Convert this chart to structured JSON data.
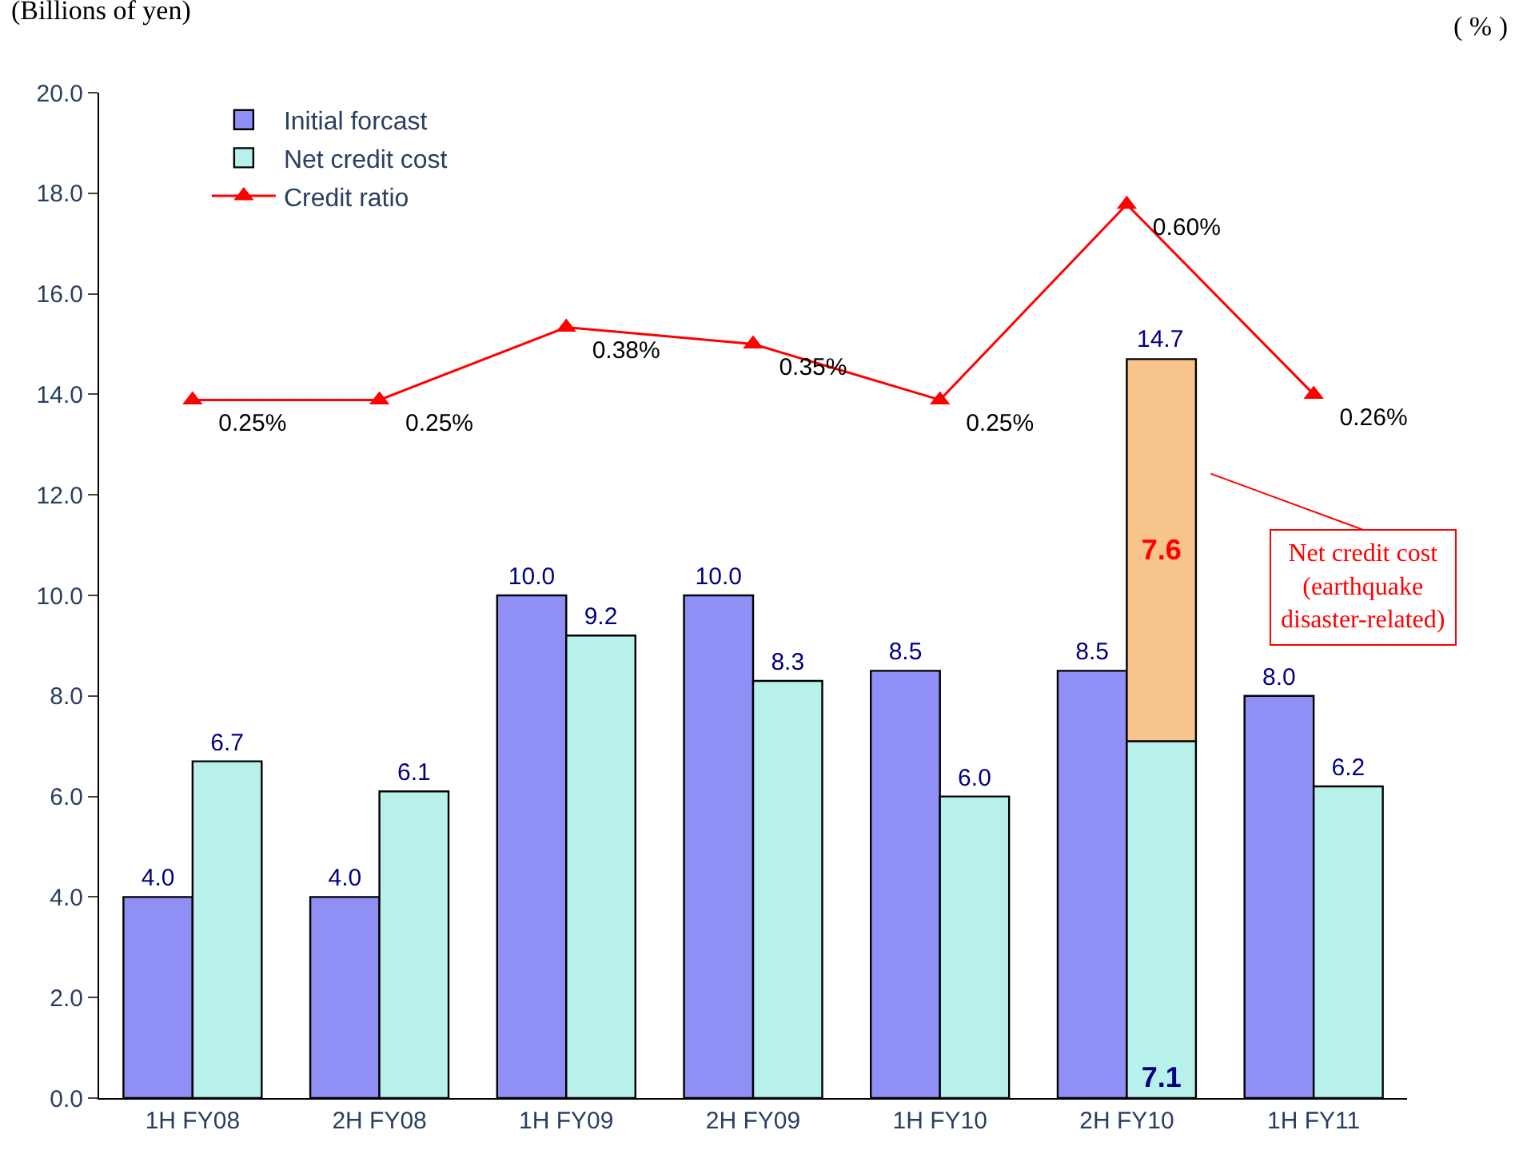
{
  "chart_data": {
    "type": "bar",
    "categories": [
      "1H FY08",
      "2H FY08",
      "1H FY09",
      "2H FY09",
      "1H FY10",
      "2H FY10",
      "1H FY11"
    ],
    "ylabel": "(Billions of yen)",
    "y2label": "( % )",
    "ylim": [
      0,
      20
    ],
    "yticks": [
      {
        "value": 0,
        "label": "0.0"
      },
      {
        "value": 2,
        "label": "2.0"
      },
      {
        "value": 4,
        "label": "4.0"
      },
      {
        "value": 6,
        "label": "6.0"
      },
      {
        "value": 8,
        "label": "8.0"
      },
      {
        "value": 10,
        "label": "10.0"
      },
      {
        "value": 12,
        "label": "12.0"
      },
      {
        "value": 14,
        "label": "14.0"
      },
      {
        "value": 16,
        "label": "16.0"
      },
      {
        "value": 18,
        "label": "18.0"
      },
      {
        "value": 20,
        "label": "20.0"
      }
    ],
    "y2lim": [
      -1.0,
      0.8
    ],
    "series": [
      {
        "name": "Initial forcast",
        "color": "#8f8ff5",
        "values": [
          4.0,
          4.0,
          10.0,
          10.0,
          8.5,
          8.5,
          8.0
        ],
        "value_labels": [
          "4.0",
          "4.0",
          "10.0",
          "10.0",
          "8.5",
          "8.5",
          "8.0"
        ]
      },
      {
        "name": "Net credit cost",
        "color": "#b8f0ec",
        "values": [
          6.7,
          6.1,
          9.2,
          8.3,
          6.0,
          7.1,
          6.2
        ],
        "value_labels": [
          "6.7",
          "6.1",
          "9.2",
          "8.3",
          "6.0",
          "7.1",
          "6.2"
        ]
      },
      {
        "color": "#f7c48c",
        "base": [
          null,
          null,
          null,
          null,
          null,
          7.1,
          null
        ],
        "values": [
          null,
          null,
          null,
          null,
          null,
          7.6,
          null
        ],
        "value_labels": [
          null,
          null,
          null,
          null,
          null,
          "7.6",
          null
        ]
      },
      {
        "name": "Credit ratio",
        "type": "line",
        "axis": "y2",
        "color": "#ff0000",
        "marker": "triangle",
        "values": [
          0.25,
          0.25,
          0.38,
          0.35,
          0.25,
          0.6,
          0.26
        ],
        "value_labels": [
          "0.25%",
          "0.25%",
          "0.38%",
          "0.35%",
          "0.25%",
          "0.60%",
          "0.26%"
        ]
      }
    ],
    "annotations": [
      {
        "text": "14.7",
        "x": "2H FY10",
        "y": 14.7
      },
      "Net credit cost\n(earthquake\ndisaster-related)"
    ],
    "legend": "top left"
  }
}
